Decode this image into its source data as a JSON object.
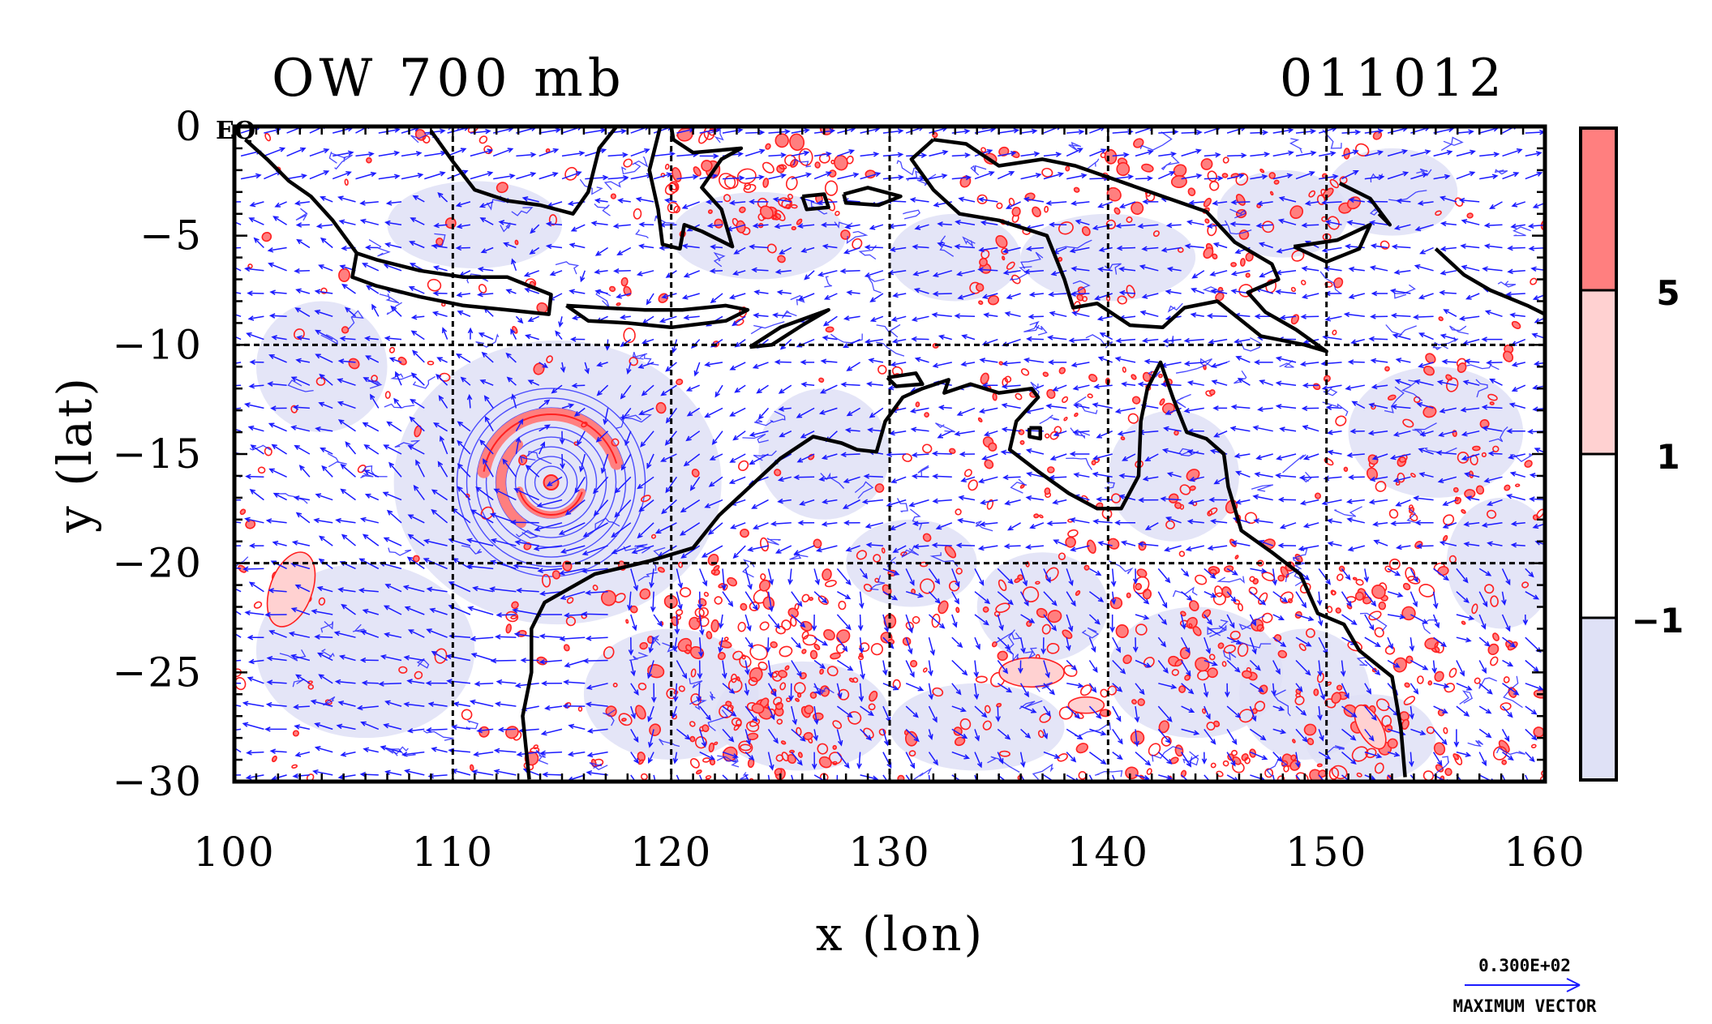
{
  "plot": {
    "title_left": "OW 700 mb",
    "title_right": "011012",
    "eq_label": "EQ",
    "xlabel": "x (lon)",
    "ylabel": "y (lat)",
    "x_ticks": [
      "100",
      "110",
      "120",
      "130",
      "140",
      "150",
      "160"
    ],
    "y_ticks": [
      "0",
      "−5",
      "−10",
      "−15",
      "−20",
      "−25",
      "−30"
    ],
    "xlim": [
      100,
      160
    ],
    "ylim": [
      -30,
      0
    ],
    "grid_lons": [
      110,
      120,
      130,
      140,
      150
    ],
    "grid_lats": [
      -10,
      -20
    ]
  },
  "colorbar": {
    "labels": [
      "5",
      "1",
      "−1"
    ],
    "colors": [
      "#ff7f7f",
      "#ffd1d1",
      "#ffffff",
      "#dfe1f6"
    ]
  },
  "vector_key": {
    "value": "0.300E+02",
    "caption": "MAXIMUM VECTOR"
  },
  "colors": {
    "vector": "#1b1bff",
    "positive_contour": "#ff2020",
    "positive_fill": "#ff7f7f",
    "light_positive_fill": "#ffd1d1",
    "negative_fill": "#dfe1f6",
    "coast": "#000000"
  },
  "chart_data": {
    "type": "heatmap",
    "title": "OW 700 mb",
    "date": "011012",
    "xlabel": "x (lon)",
    "ylabel": "y (lat)",
    "xlim": [
      100,
      160
    ],
    "ylim": [
      -30,
      0
    ],
    "color_levels": [
      -1,
      1,
      5
    ],
    "cyclone_center": {
      "lon": 114.5,
      "lat": -16.3
    },
    "coastlines": [
      {
        "name": "sumatra",
        "points": [
          [
            100.5,
            -0.6
          ],
          [
            101.5,
            -1.5
          ],
          [
            102.5,
            -2.5
          ],
          [
            103.5,
            -3.2
          ],
          [
            104.5,
            -4.3
          ],
          [
            105.6,
            -5.8
          ]
        ]
      },
      {
        "name": "java",
        "points": [
          [
            105.6,
            -5.8
          ],
          [
            106.5,
            -6.1
          ],
          [
            108.5,
            -6.6
          ],
          [
            110.5,
            -6.9
          ],
          [
            112.5,
            -6.9
          ],
          [
            114.5,
            -7.7
          ],
          [
            114.4,
            -8.6
          ],
          [
            112.5,
            -8.4
          ],
          [
            110.5,
            -8.2
          ],
          [
            108.5,
            -7.8
          ],
          [
            106.5,
            -7.3
          ],
          [
            105.4,
            -6.9
          ],
          [
            105.6,
            -5.8
          ]
        ]
      },
      {
        "name": "lesser_sunda",
        "points": [
          [
            115.2,
            -8.2
          ],
          [
            116.8,
            -8.3
          ],
          [
            118.8,
            -8.4
          ],
          [
            120.5,
            -8.4
          ],
          [
            122.5,
            -8.2
          ],
          [
            123.5,
            -8.4
          ],
          [
            122.5,
            -8.9
          ],
          [
            120.0,
            -9.2
          ],
          [
            118.0,
            -9.0
          ],
          [
            116.2,
            -8.9
          ],
          [
            115.2,
            -8.2
          ]
        ]
      },
      {
        "name": "timor",
        "points": [
          [
            123.6,
            -10.1
          ],
          [
            125.0,
            -9.2
          ],
          [
            127.2,
            -8.4
          ],
          [
            126.0,
            -9.1
          ],
          [
            124.6,
            -10.0
          ],
          [
            123.6,
            -10.1
          ]
        ]
      },
      {
        "name": "borneo",
        "points": [
          [
            109.0,
            -0.2
          ],
          [
            110.0,
            -1.6
          ],
          [
            111.0,
            -2.9
          ],
          [
            112.5,
            -3.4
          ],
          [
            114.0,
            -3.6
          ],
          [
            115.5,
            -4.0
          ],
          [
            116.2,
            -3.0
          ],
          [
            116.7,
            -1.0
          ],
          [
            117.5,
            0.0
          ]
        ]
      },
      {
        "name": "sulawesi",
        "points": [
          [
            119.5,
            0.0
          ],
          [
            119.0,
            -2.0
          ],
          [
            119.4,
            -3.8
          ],
          [
            119.6,
            -5.4
          ],
          [
            120.4,
            -5.6
          ],
          [
            120.6,
            -4.5
          ],
          [
            121.4,
            -4.8
          ],
          [
            122.8,
            -5.5
          ],
          [
            122.3,
            -3.8
          ],
          [
            121.4,
            -2.8
          ],
          [
            122.3,
            -1.5
          ],
          [
            123.2,
            -1.0
          ],
          [
            121.0,
            -1.2
          ],
          [
            120.1,
            -0.6
          ],
          [
            120.0,
            0.0
          ]
        ]
      },
      {
        "name": "seram",
        "points": [
          [
            127.9,
            -3.1
          ],
          [
            129.0,
            -2.8
          ],
          [
            130.5,
            -3.2
          ],
          [
            129.5,
            -3.6
          ],
          [
            128.0,
            -3.5
          ],
          [
            127.9,
            -3.1
          ]
        ]
      },
      {
        "name": "buru",
        "points": [
          [
            126.0,
            -3.2
          ],
          [
            127.0,
            -3.1
          ],
          [
            127.2,
            -3.7
          ],
          [
            126.2,
            -3.8
          ],
          [
            126.0,
            -3.2
          ]
        ]
      },
      {
        "name": "new_guinea",
        "points": [
          [
            132.0,
            -0.6
          ],
          [
            133.5,
            -0.8
          ],
          [
            135.0,
            -1.8
          ],
          [
            137.0,
            -1.5
          ],
          [
            138.5,
            -1.8
          ],
          [
            140.5,
            -2.5
          ],
          [
            142.5,
            -3.2
          ],
          [
            144.5,
            -3.9
          ],
          [
            145.8,
            -5.3
          ],
          [
            147.5,
            -6.3
          ],
          [
            147.8,
            -7.0
          ],
          [
            146.4,
            -7.6
          ],
          [
            147.2,
            -8.5
          ],
          [
            148.6,
            -9.3
          ],
          [
            150.0,
            -10.3
          ],
          [
            149.0,
            -10.0
          ],
          [
            147.0,
            -9.6
          ],
          [
            145.0,
            -8.0
          ],
          [
            143.5,
            -8.3
          ],
          [
            142.5,
            -9.2
          ],
          [
            141.0,
            -9.1
          ],
          [
            139.5,
            -8.1
          ],
          [
            138.4,
            -8.3
          ],
          [
            138.0,
            -7.0
          ],
          [
            137.2,
            -5.0
          ],
          [
            135.0,
            -4.3
          ],
          [
            133.2,
            -4.0
          ],
          [
            132.0,
            -2.9
          ],
          [
            131.0,
            -1.5
          ],
          [
            132.0,
            -0.6
          ]
        ]
      },
      {
        "name": "new_britain",
        "points": [
          [
            148.5,
            -5.5
          ],
          [
            150.5,
            -5.2
          ],
          [
            152.0,
            -4.5
          ],
          [
            151.5,
            -5.6
          ],
          [
            150.0,
            -6.2
          ],
          [
            148.5,
            -5.5
          ]
        ]
      },
      {
        "name": "new_ireland",
        "points": [
          [
            150.6,
            -2.6
          ],
          [
            152.0,
            -3.3
          ],
          [
            152.9,
            -4.5
          ],
          [
            152.4,
            -4.0
          ]
        ]
      },
      {
        "name": "australia",
        "points": [
          [
            113.5,
            -29.9
          ],
          [
            113.2,
            -27.0
          ],
          [
            113.6,
            -25.0
          ],
          [
            113.6,
            -23.0
          ],
          [
            114.2,
            -21.8
          ],
          [
            116.5,
            -20.5
          ],
          [
            119.0,
            -19.9
          ],
          [
            121.0,
            -19.3
          ],
          [
            122.2,
            -17.8
          ],
          [
            123.6,
            -16.5
          ],
          [
            125.0,
            -15.2
          ],
          [
            126.5,
            -14.2
          ],
          [
            127.8,
            -14.5
          ],
          [
            128.5,
            -14.8
          ],
          [
            129.4,
            -14.9
          ],
          [
            129.8,
            -13.5
          ],
          [
            130.6,
            -12.4
          ],
          [
            131.5,
            -12.0
          ],
          [
            132.7,
            -11.6
          ],
          [
            132.5,
            -12.2
          ],
          [
            133.7,
            -11.8
          ],
          [
            135.0,
            -12.2
          ],
          [
            136.5,
            -12.0
          ],
          [
            136.8,
            -12.4
          ],
          [
            135.8,
            -13.5
          ],
          [
            135.5,
            -14.8
          ],
          [
            136.8,
            -15.8
          ],
          [
            138.2,
            -16.8
          ],
          [
            139.5,
            -17.5
          ],
          [
            140.6,
            -17.5
          ],
          [
            141.4,
            -16.0
          ],
          [
            141.5,
            -13.5
          ],
          [
            141.8,
            -12.0
          ],
          [
            142.4,
            -10.8
          ],
          [
            143.0,
            -12.5
          ],
          [
            143.6,
            -14.0
          ],
          [
            144.5,
            -14.3
          ],
          [
            145.3,
            -15.0
          ],
          [
            145.5,
            -16.5
          ],
          [
            146.1,
            -18.5
          ],
          [
            147.5,
            -19.5
          ],
          [
            148.8,
            -20.5
          ],
          [
            149.6,
            -22.3
          ],
          [
            150.8,
            -22.8
          ],
          [
            151.5,
            -24.0
          ],
          [
            153.0,
            -25.2
          ],
          [
            153.4,
            -27.5
          ],
          [
            153.6,
            -29.8
          ]
        ]
      },
      {
        "name": "melville",
        "points": [
          [
            129.9,
            -11.5
          ],
          [
            131.2,
            -11.3
          ],
          [
            131.5,
            -11.8
          ],
          [
            130.3,
            -11.9
          ],
          [
            129.9,
            -11.5
          ]
        ]
      },
      {
        "name": "groote",
        "points": [
          [
            136.4,
            -13.8
          ],
          [
            136.9,
            -13.8
          ],
          [
            136.9,
            -14.3
          ],
          [
            136.4,
            -14.2
          ],
          [
            136.4,
            -13.8
          ]
        ]
      },
      {
        "name": "solomons",
        "points": [
          [
            155.0,
            -5.6
          ],
          [
            156.3,
            -6.8
          ],
          [
            157.5,
            -7.5
          ],
          [
            159.2,
            -8.2
          ],
          [
            160.0,
            -8.6
          ]
        ]
      }
    ]
  }
}
